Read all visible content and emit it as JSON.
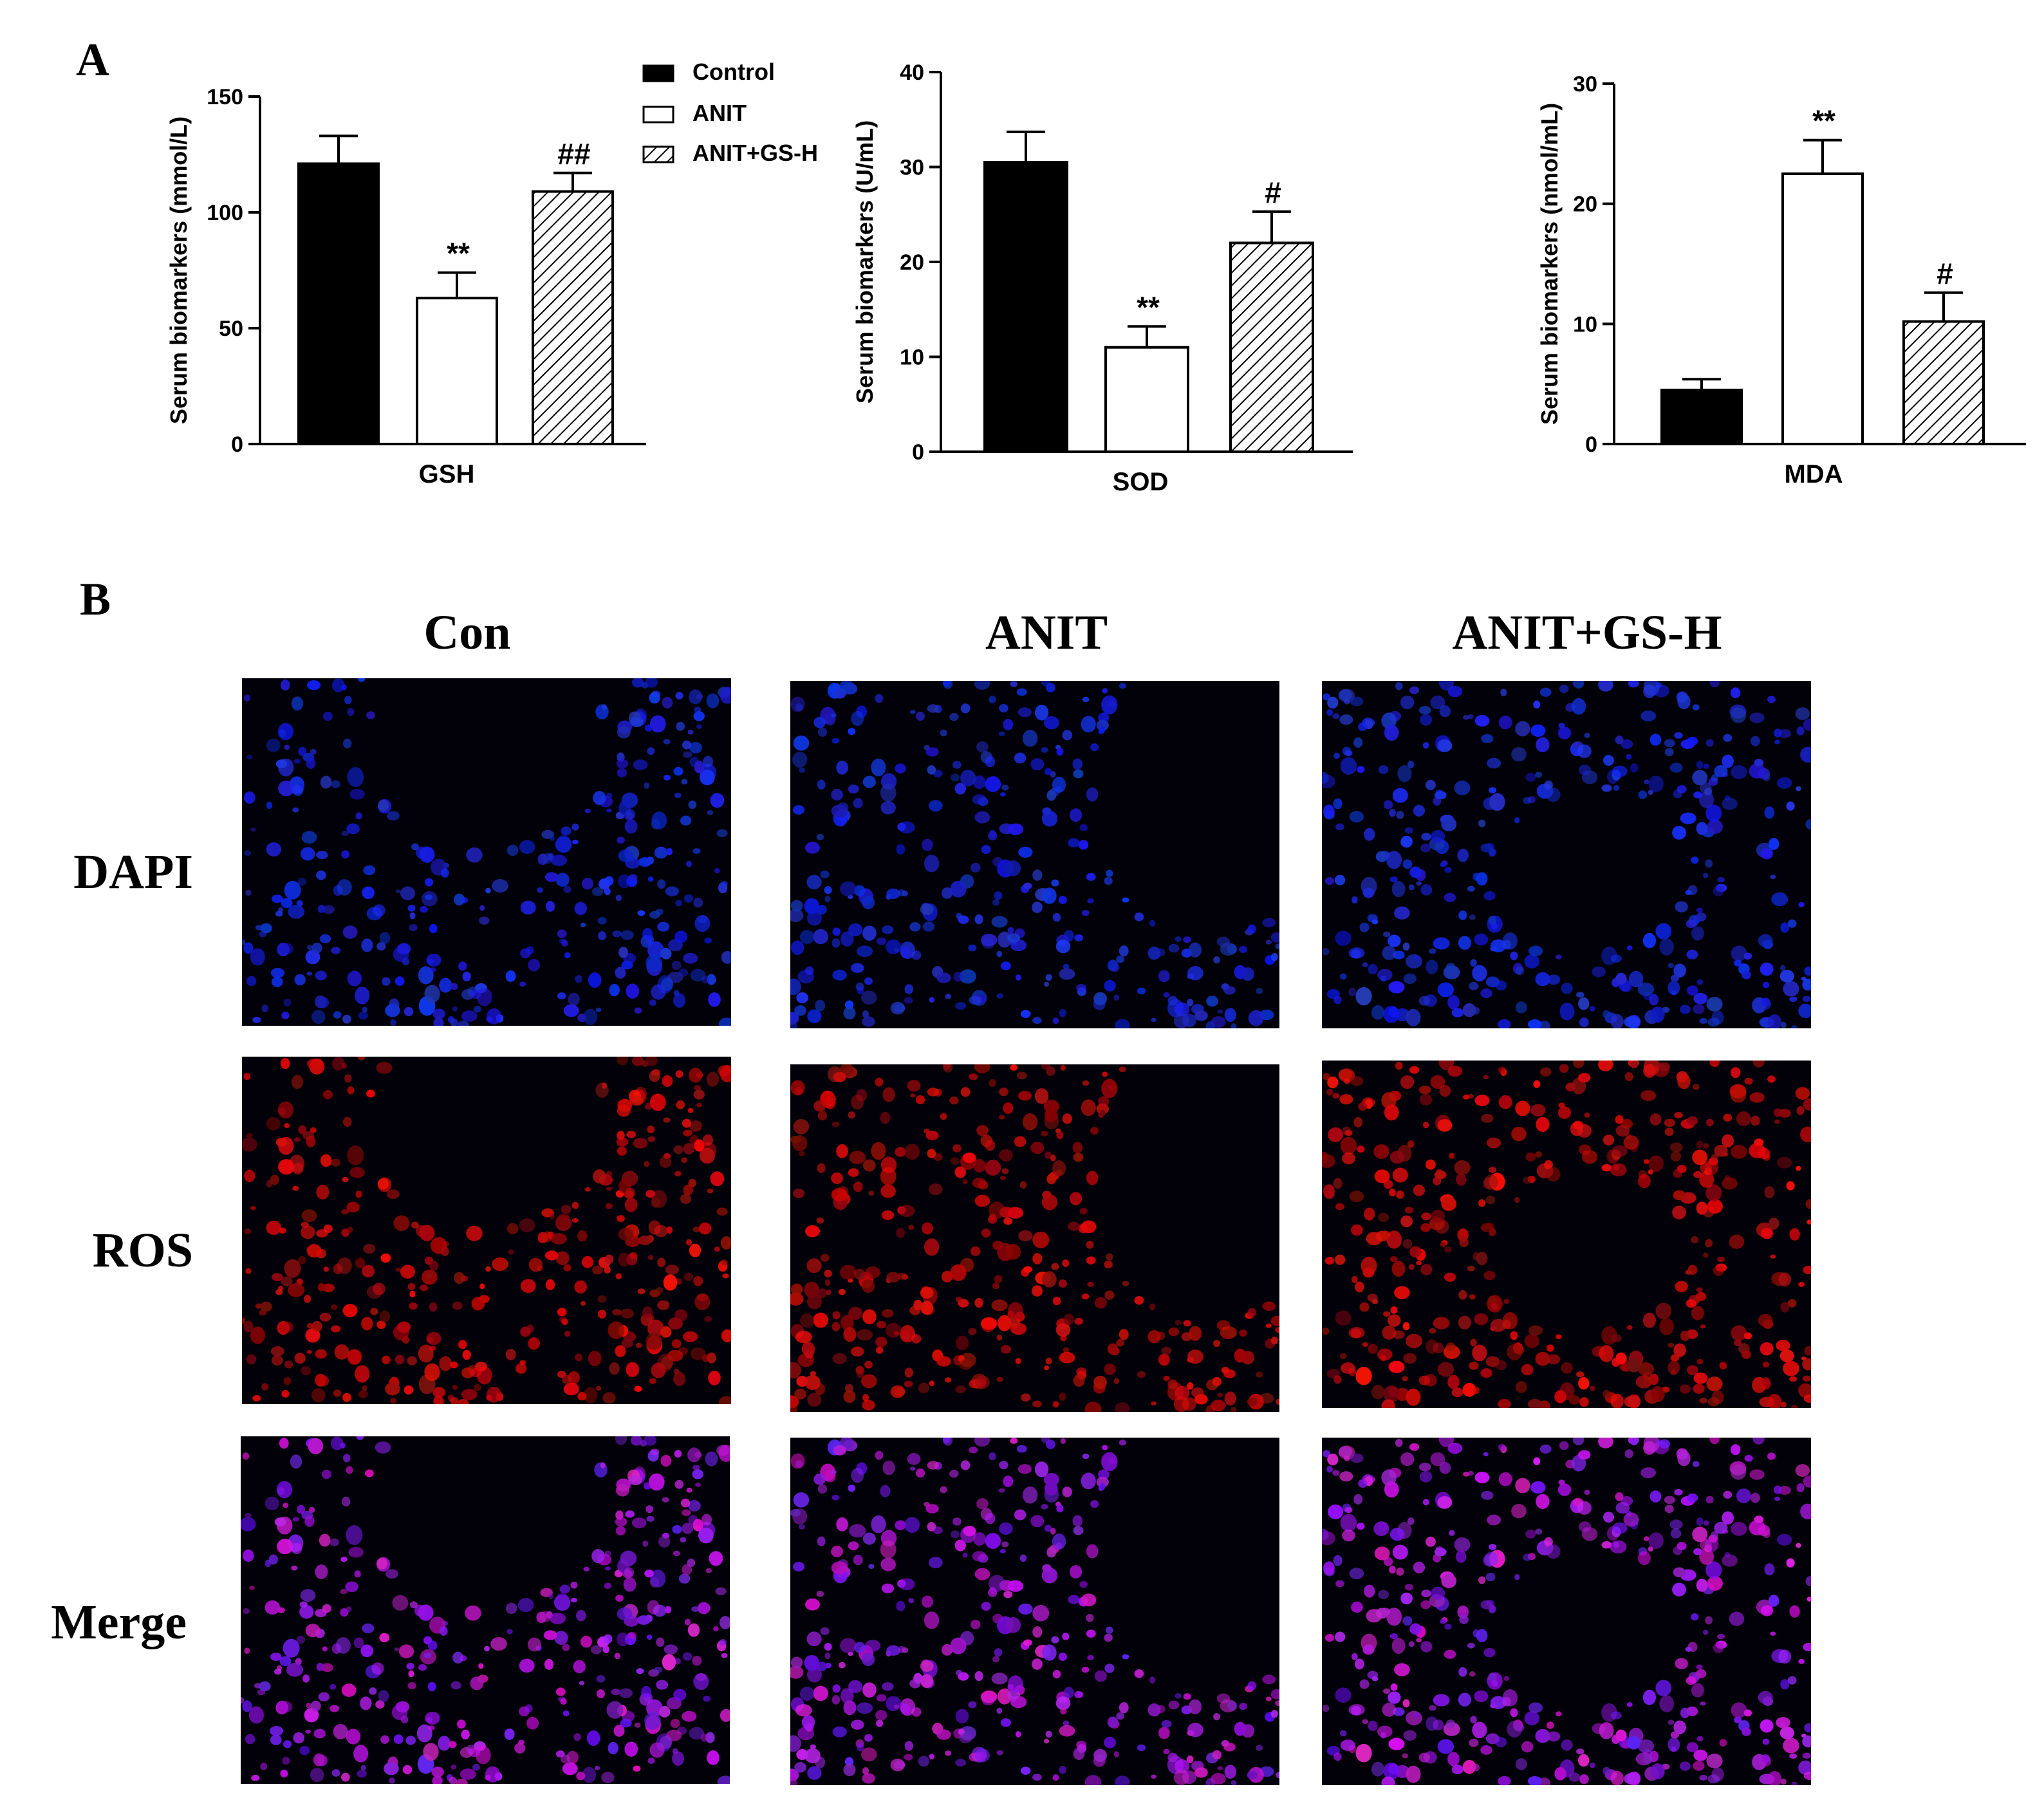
{
  "panel_labels": {
    "a": "A",
    "b": "B"
  },
  "legend": {
    "items": [
      {
        "label": "Control",
        "fill": "solid"
      },
      {
        "label": "ANIT",
        "fill": "open"
      },
      {
        "label": "ANIT+GS-H",
        "fill": "hatch"
      }
    ]
  },
  "colors": {
    "bar_solid": "#000000",
    "axis": "#000000",
    "dapi": "#1a22ff",
    "ros": "#d81818",
    "merge": "#8a2cff"
  },
  "chart_data": [
    {
      "type": "bar",
      "title": "GSH",
      "xlabel": "GSH",
      "ylabel": "Serum biomarkers (mmol/L)",
      "ylim": [
        0,
        150
      ],
      "yticks": [
        0,
        50,
        100,
        150
      ],
      "categories": [
        "Control",
        "ANIT",
        "ANIT+GS-H"
      ],
      "values": [
        121,
        63,
        109
      ],
      "errors": [
        12,
        11,
        8
      ],
      "annotations": [
        "",
        "**",
        "##"
      ]
    },
    {
      "type": "bar",
      "title": "SOD",
      "xlabel": "SOD",
      "ylabel": "Serum biomarkers (U/mL)",
      "ylim": [
        0,
        40
      ],
      "yticks": [
        0,
        10,
        20,
        30,
        40
      ],
      "categories": [
        "Control",
        "ANIT",
        "ANIT+GS-H"
      ],
      "values": [
        30.5,
        11,
        22
      ],
      "errors": [
        3.2,
        2.2,
        3.3
      ],
      "annotations": [
        "",
        "**",
        "#"
      ]
    },
    {
      "type": "bar",
      "title": "MDA",
      "xlabel": "MDA",
      "ylabel": "Serum biomarkers (nmol/mL)",
      "ylim": [
        0,
        30
      ],
      "yticks": [
        0,
        10,
        20,
        30
      ],
      "categories": [
        "Control",
        "ANIT",
        "ANIT+GS-H"
      ],
      "values": [
        4.5,
        22.5,
        10.2
      ],
      "errors": [
        0.9,
        2.8,
        2.4
      ],
      "annotations": [
        "",
        "**",
        "#"
      ]
    }
  ],
  "microscopy": {
    "columns": [
      "Con",
      "ANIT",
      "ANIT+GS-H"
    ],
    "rows": [
      "DAPI",
      "ROS",
      "Merge"
    ]
  }
}
